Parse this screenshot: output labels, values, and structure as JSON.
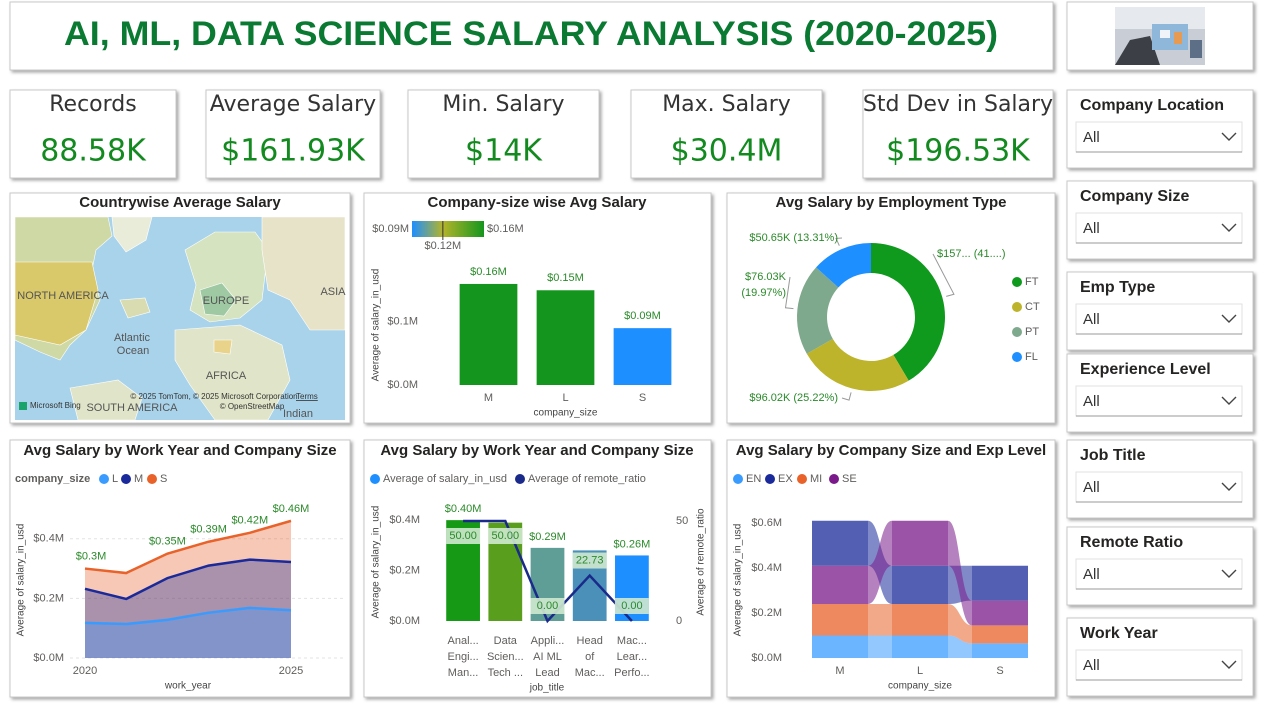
{
  "header": {
    "title": "AI, ML, DATA SCIENCE SALARY ANALYSIS (2020-2025)"
  },
  "kpis": [
    {
      "label": "Records",
      "value": "88.58K"
    },
    {
      "label": "Average Salary",
      "value": "$161.93K"
    },
    {
      "label": "Min. Salary",
      "value": "$14K"
    },
    {
      "label": "Max. Salary",
      "value": "$30.4M"
    },
    {
      "label": "Std Dev in Salary",
      "value": "$196.53K"
    }
  ],
  "slicers": [
    {
      "label": "Company Location",
      "value": "All"
    },
    {
      "label": "Company Size",
      "value": "All"
    },
    {
      "label": "Emp Type",
      "value": "All"
    },
    {
      "label": "Experience Level",
      "value": "All"
    },
    {
      "label": "Job Title",
      "value": "All"
    },
    {
      "label": "Remote Ratio",
      "value": "All"
    },
    {
      "label": "Work Year",
      "value": "All"
    }
  ],
  "map": {
    "title": "Countrywise Average Salary",
    "labels": [
      "NORTH AMERICA",
      "EUROPE",
      "ASIA",
      "Atlantic",
      "Ocean",
      "AFRICA",
      "SOUTH AMERICA",
      "Indian"
    ],
    "attribution": "© 2025 TomTom, © 2025 Microsoft Corporation",
    "terms": "Terms",
    "osm": "© OpenStreetMap",
    "provider": "Microsoft Bing"
  },
  "chart_data": [
    {
      "type": "bar",
      "title": "Company-size wise Avg Salary",
      "categories": [
        "M",
        "L",
        "S"
      ],
      "values": [
        160000,
        150000,
        90000
      ],
      "value_labels": [
        "$0.16M",
        "$0.15M",
        "$0.09M"
      ],
      "colors": [
        "#14961e",
        "#14961e",
        "#1e8fff"
      ],
      "ylim": [
        0,
        190000
      ],
      "yticks": [
        {
          "value": 0,
          "label": "$0.0M"
        },
        {
          "value": 100000,
          "label": "$0.1M"
        }
      ],
      "x_label": "company_size",
      "y_label": "Average of salary_in_usd",
      "color_legend": [
        {
          "value": 90000,
          "label": "$0.09M",
          "color": "#1e8fff"
        },
        {
          "value": 120000,
          "label": "$0.12M",
          "color": "#b4b42a"
        },
        {
          "value": 160000,
          "label": "$0.16M",
          "color": "#14961e"
        }
      ]
    },
    {
      "type": "donut",
      "title": "Avg Salary by Employment Type",
      "categories": [
        "FT",
        "CT",
        "PT",
        "FL"
      ],
      "values": [
        157950,
        96020,
        76030,
        50650
      ],
      "value_labels": [
        "$157... (41....)",
        "$96.02K (25.22%)",
        "$76.03K (19.97%)",
        "$50.65K (13.31%)"
      ],
      "colors": [
        "#0f9a1e",
        "#bdb42c",
        "#7fa98c",
        "#1e8fff"
      ],
      "legend": "right"
    },
    {
      "type": "area",
      "title": "Avg Salary by Work Year and Company Size",
      "legend_title": "company_size",
      "x": [
        2020,
        2021,
        2022,
        2023,
        2024,
        2025
      ],
      "xlim": [
        2020,
        2025
      ],
      "xticks": [
        2020,
        2025
      ],
      "ylim": [
        0,
        530000
      ],
      "yticks": [
        {
          "value": 0,
          "label": "$0.0M"
        },
        {
          "value": 200000,
          "label": "$0.2M"
        },
        {
          "value": 400000,
          "label": "$0.4M"
        }
      ],
      "grid": true,
      "series": [
        {
          "name": "L",
          "color": "#3a9bff",
          "values": [
            118000,
            114000,
            128000,
            152000,
            168000,
            160000
          ]
        },
        {
          "name": "M",
          "color": "#1a2a9a",
          "values": [
            232000,
            198000,
            268000,
            310000,
            330000,
            322000
          ]
        },
        {
          "name": "S",
          "color": "#e8622a",
          "values": [
            300000,
            285000,
            350000,
            390000,
            420000,
            460000
          ],
          "value_labels": [
            "$0.3M",
            null,
            "$0.35M",
            "$0.39M",
            "$0.42M",
            "$0.46M"
          ]
        }
      ],
      "x_label": "work_year",
      "y_label": "Average of salary_in_usd"
    },
    {
      "type": "bar_line",
      "title": "Avg Salary by Work Year and Company Size",
      "categories": [
        "Anal...\nEngi...\nMan...",
        "Data\nScien...\nTech ...",
        "Appli...\nAI ML\nLead",
        "Head\nof\nMac...",
        "Mac...\nLear...\nPerfo..."
      ],
      "ylim": [
        0,
        460000
      ],
      "yticks": [
        {
          "value": 0,
          "label": "$0.0M"
        },
        {
          "value": 200000,
          "label": "$0.2M"
        },
        {
          "value": 400000,
          "label": "$0.4M"
        }
      ],
      "y2lim": [
        0,
        58
      ],
      "y2ticks": [
        0,
        50
      ],
      "series": [
        {
          "name": "Average of salary_in_usd",
          "type": "bar",
          "color": "#1e8fff",
          "colors": [
            "#169a16",
            "#5a9e1e",
            "#5e9e96",
            "#4a90b8",
            "#1e8fff"
          ],
          "values": [
            400000,
            390000,
            290000,
            280000,
            260000
          ],
          "value_labels": [
            "$0.40M",
            null,
            "$0.29M",
            null,
            "$0.26M"
          ]
        },
        {
          "name": "Average of remote_ratio",
          "type": "line",
          "axis": "y2",
          "color": "#1a2a8a",
          "values": [
            50,
            50,
            0,
            22.73,
            0
          ],
          "value_labels": [
            "50.00",
            "50.00",
            "0.00",
            "22.73",
            "0.00"
          ]
        }
      ],
      "x_label": "job_title",
      "y_label": "Average of salary_in_usd",
      "y2_label": "Average of remote_ratio"
    },
    {
      "type": "ribbon",
      "title": "Avg Salary by Company Size and Exp Level",
      "categories": [
        "M",
        "L",
        "S"
      ],
      "ylim": [
        0,
        680000
      ],
      "yticks": [
        {
          "value": 0,
          "label": "$0.0M"
        },
        {
          "value": 200000,
          "label": "$0.2M"
        },
        {
          "value": 400000,
          "label": "$0.4M"
        },
        {
          "value": 600000,
          "label": "$0.6M"
        }
      ],
      "series": [
        {
          "name": "EN",
          "color": "#3a9bff",
          "values": [
            100000,
            100000,
            65000
          ]
        },
        {
          "name": "EX",
          "color": "#1a2a9a",
          "values": [
            200000,
            170000,
            155000
          ]
        },
        {
          "name": "MI",
          "color": "#e8622a",
          "values": [
            140000,
            140000,
            80000
          ]
        },
        {
          "name": "SE",
          "color": "#7a1a8a",
          "values": [
            170000,
            200000,
            110000
          ]
        }
      ],
      "x_label": "company_size",
      "y_label": "Average of salary_in_usd"
    }
  ]
}
